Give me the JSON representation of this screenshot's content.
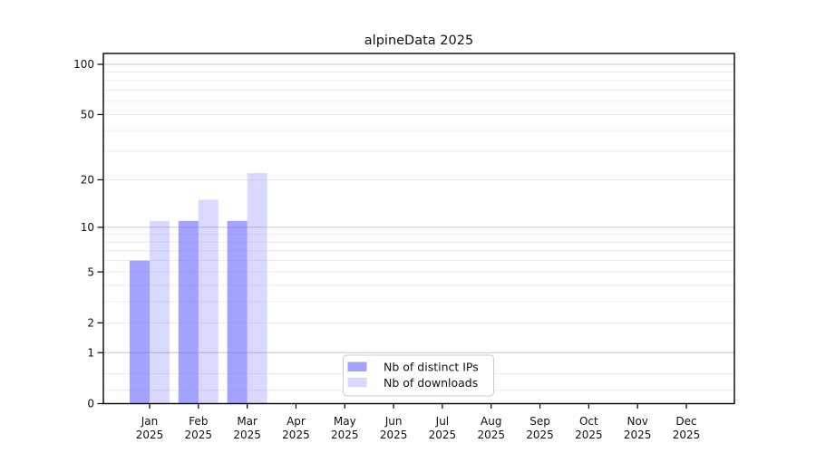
{
  "window": {
    "background": "#ffffff"
  },
  "chart_data": {
    "type": "bar",
    "title": "alpineData 2025",
    "x_tick_months": [
      "Jan",
      "Feb",
      "Mar",
      "Apr",
      "May",
      "Jun",
      "Jul",
      "Aug",
      "Sep",
      "Oct",
      "Nov",
      "Dec"
    ],
    "x_tick_year": "2025",
    "y_ticks": [
      0,
      1,
      2,
      5,
      10,
      20,
      50,
      100
    ],
    "y_scale": "symlog",
    "ylim": [
      0,
      113
    ],
    "categories": [
      "Jan 2025",
      "Feb 2025",
      "Mar 2025",
      "Apr 2025",
      "May 2025",
      "Jun 2025",
      "Jul 2025",
      "Aug 2025",
      "Sep 2025",
      "Oct 2025",
      "Nov 2025",
      "Dec 2025"
    ],
    "series": [
      {
        "name": "Nb of distinct IPs",
        "color": "#6666ff",
        "opacity": 0.6,
        "values": [
          6,
          11,
          11,
          0,
          0,
          0,
          0,
          0,
          0,
          0,
          0,
          0
        ]
      },
      {
        "name": "Nb of downloads",
        "color": "#6666ff",
        "opacity": 0.25,
        "values": [
          11,
          15,
          22,
          0,
          0,
          0,
          0,
          0,
          0,
          0,
          0,
          0
        ]
      }
    ],
    "legend_position": "lower center",
    "grid": {
      "major_values": [
        1,
        10,
        100
      ],
      "minor_values": [
        0.2,
        0.5,
        2,
        3,
        4,
        5,
        6,
        7,
        8,
        9,
        20,
        30,
        40,
        50,
        60,
        70,
        80,
        90
      ],
      "major_color": "#c6c6c6",
      "minor_color": "#ececec"
    },
    "axis_color": "#000000",
    "text_color": "#111111",
    "legend_border_color": "#cccccc",
    "legend_background": "#ffffff"
  }
}
